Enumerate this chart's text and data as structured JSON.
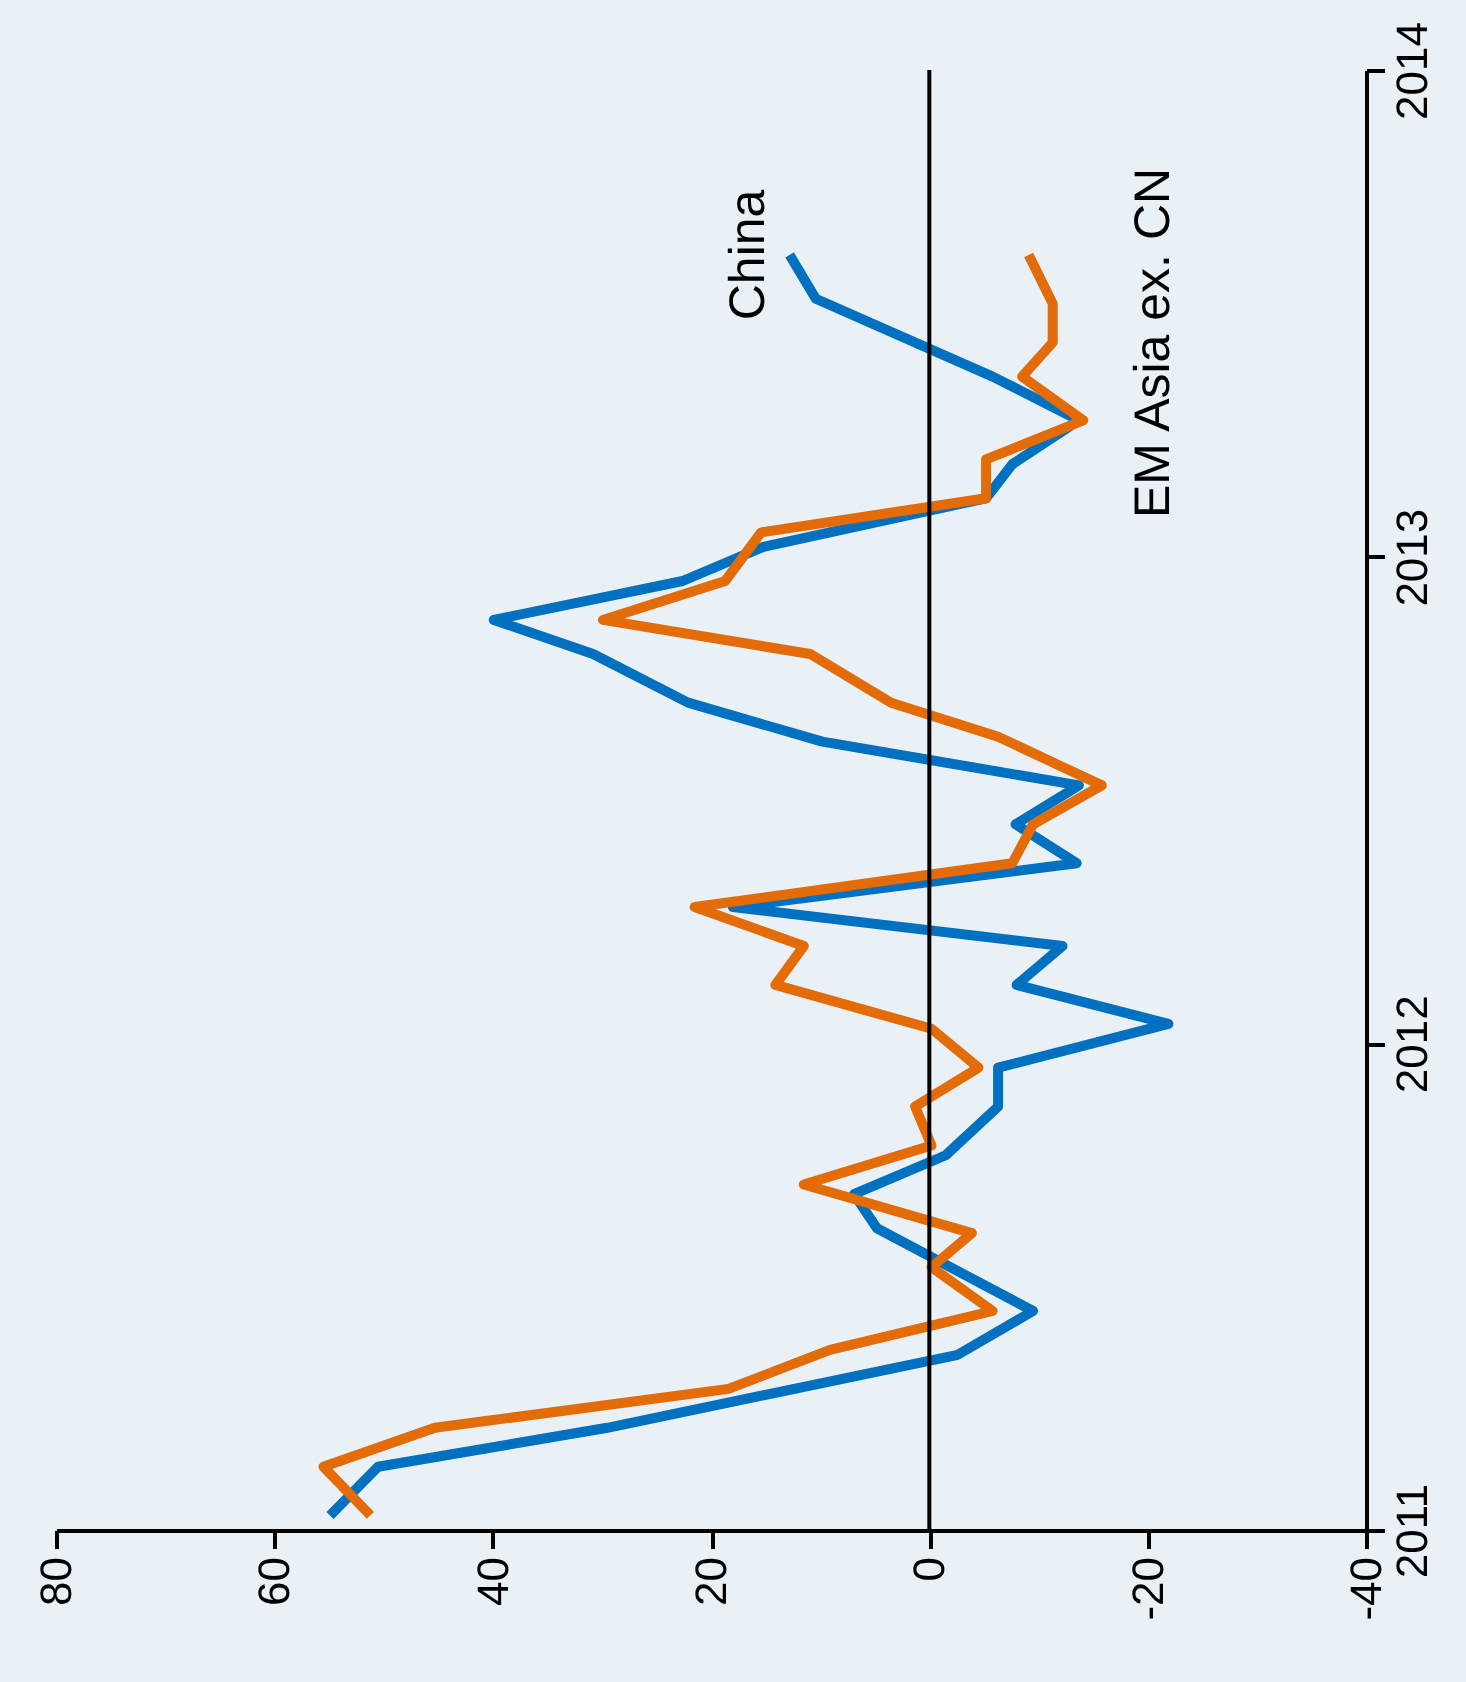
{
  "chart_data": {
    "type": "line",
    "xlim": [
      80,
      -40
    ],
    "xticks": [
      80,
      60,
      40,
      20,
      0,
      -20,
      -40
    ],
    "ylim": [
      2011,
      2014
    ],
    "yticks": [
      2011,
      2012,
      2013,
      2014
    ],
    "grid": false,
    "legend": false,
    "marker": "none",
    "line_style": "solid",
    "ref_lines": [
      {
        "axis": "x",
        "value": 0,
        "color": "#000000"
      }
    ],
    "series": [
      {
        "name": "China",
        "color": "#0070c0",
        "x": [
          54.9,
          50.5,
          29.5,
          -2.6,
          -9.5,
          4.8,
          6.9,
          -1.5,
          -6.3,
          -6.3,
          -21.9,
          -8,
          -12.2,
          18,
          -13.5,
          -7.9,
          -13.7,
          9.8,
          22.1,
          30.8,
          39.9,
          22.6,
          15.2,
          -5.2,
          -7.6,
          -13.7,
          -5.8,
          10.4,
          12.8
        ],
        "values": [
          2011.03,
          2011.13,
          2011.21,
          2011.36,
          2011.45,
          2011.62,
          2011.69,
          2011.77,
          2011.87,
          2011.95,
          2012.04,
          2012.12,
          2012.2,
          2012.28,
          2012.37,
          2012.45,
          2012.53,
          2012.62,
          2012.7,
          2012.8,
          2012.87,
          2012.95,
          2013.02,
          2013.12,
          2013.19,
          2013.28,
          2013.37,
          2013.53,
          2013.62
        ]
      },
      {
        "name": "EM Asia ex. CN",
        "color": "#e36c09",
        "x": [
          51.2,
          55.5,
          45.3,
          18.4,
          9.1,
          -0.2,
          -5.8,
          -0.2,
          -3.9,
          11.5,
          -0.2,
          1.3,
          -4.5,
          -0.2,
          14.1,
          11.5,
          21.5,
          -7.6,
          -9.5,
          -15.8,
          -6.3,
          3.5,
          10.9,
          29.9,
          18.7,
          15.4,
          -5.2,
          -5.2,
          -14.1,
          -8.5,
          -11.3,
          -11.3,
          -9.1
        ],
        "values": [
          2011.03,
          2011.13,
          2011.21,
          2011.29,
          2011.37,
          2011.42,
          2011.45,
          2011.54,
          2011.61,
          2011.71,
          2011.79,
          2011.87,
          2011.95,
          2012.03,
          2012.12,
          2012.2,
          2012.28,
          2012.37,
          2012.45,
          2012.53,
          2012.63,
          2012.7,
          2012.8,
          2012.87,
          2012.95,
          2013.05,
          2013.12,
          2013.2,
          2013.28,
          2013.37,
          2013.44,
          2013.52,
          2013.62
        ]
      }
    ]
  }
}
